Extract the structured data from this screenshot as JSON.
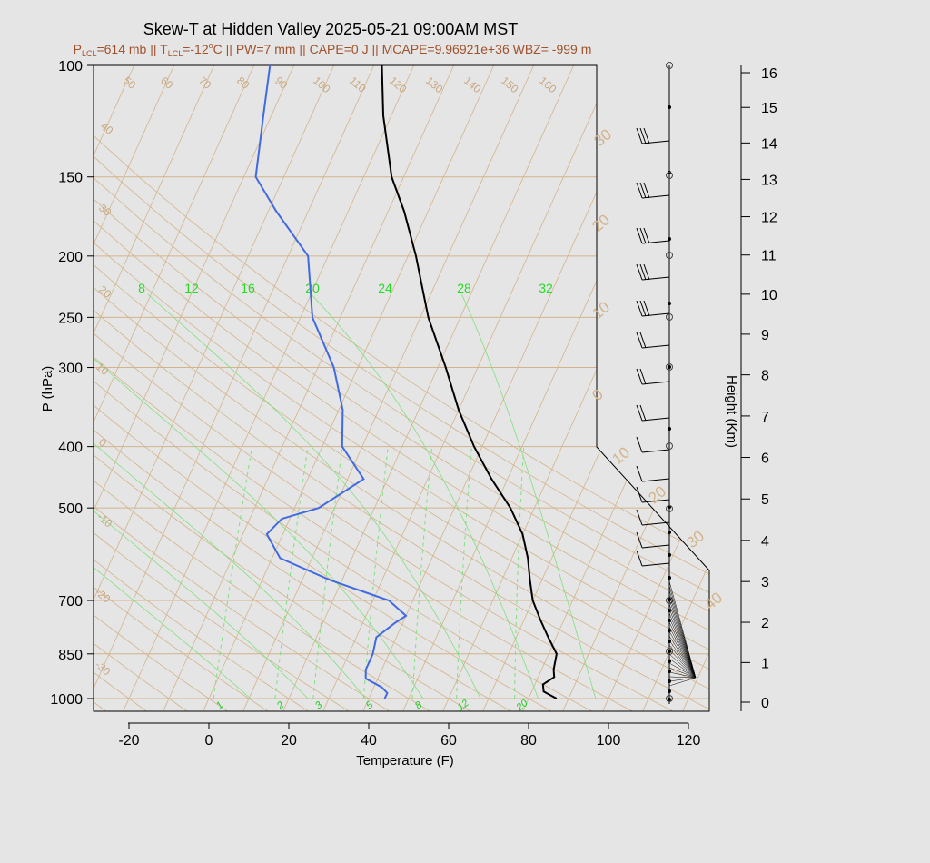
{
  "title": "Skew-T at Hidden Valley 2025-05-21 09:00AM MST",
  "subtitle": {
    "p_lcl": "P",
    "p_lcl_sub": "LCL",
    "p_lcl_val": "=614 mb || T",
    "t_lcl_sub": "LCL",
    "t_lcl_val": "=-12",
    "deg": "o",
    "rest": "C || PW=7 mm || CAPE=0 J || MCAPE=9.96921e+36 WBZ= -999 m"
  },
  "colors": {
    "temperature": "#000000",
    "dewpoint": "#4169e1",
    "isotherm": "#d2b48c",
    "mixing_ratio": "#7fe07f",
    "background": "#e5e5e5"
  },
  "chart_data": {
    "type": "line",
    "xlabel": "Temperature (F)",
    "ylabel": "P (hPa)",
    "y2label": "Height (Km)",
    "x_ticks": [
      "-20",
      "0",
      "20",
      "40",
      "60",
      "80",
      "100",
      "120"
    ],
    "y_ticks": [
      "100",
      "150",
      "200",
      "250",
      "300",
      "400",
      "500",
      "700",
      "850",
      "1000"
    ],
    "height_ticks": [
      "0",
      "1",
      "2",
      "3",
      "4",
      "5",
      "6",
      "7",
      "8",
      "9",
      "10",
      "11",
      "12",
      "13",
      "14",
      "15",
      "16"
    ],
    "mixing_ratio_labels_top": [
      "8",
      "12",
      "16",
      "20",
      "24",
      "28",
      "32"
    ],
    "mixing_ratio_labels_bottom": [
      "1",
      "2",
      "3",
      "5",
      "8",
      "12",
      "20"
    ],
    "isotherm_labels_top": [
      "50",
      "60",
      "70",
      "80",
      "90",
      "100",
      "110",
      "120",
      "130",
      "140",
      "150",
      "160"
    ],
    "isotherm_labels_left": [
      "40",
      "30",
      "20",
      "10",
      "0",
      "-10",
      "-20",
      "-30"
    ],
    "isotherm_labels_right": [
      "30",
      "20",
      "10",
      "0",
      "10",
      "20",
      "30",
      "40"
    ],
    "temperature_series": {
      "name": "Temperature",
      "points": [
        [
          1000,
          87
        ],
        [
          975,
          83
        ],
        [
          950,
          82
        ],
        [
          925,
          84
        ],
        [
          900,
          83
        ],
        [
          850,
          82
        ],
        [
          800,
          78
        ],
        [
          750,
          74
        ],
        [
          700,
          70
        ],
        [
          650,
          67
        ],
        [
          600,
          64
        ],
        [
          550,
          60
        ],
        [
          500,
          54
        ],
        [
          450,
          46
        ],
        [
          400,
          38
        ],
        [
          350,
          30
        ],
        [
          300,
          22
        ],
        [
          250,
          12
        ],
        [
          200,
          2
        ],
        [
          170,
          -6
        ],
        [
          150,
          -13
        ],
        [
          120,
          -22
        ],
        [
          100,
          -28
        ]
      ]
    },
    "dewpoint_series": {
      "name": "Dewpoint",
      "points": [
        [
          1000,
          44
        ],
        [
          980,
          44
        ],
        [
          960,
          42
        ],
        [
          930,
          37
        ],
        [
          900,
          36
        ],
        [
          850,
          36
        ],
        [
          800,
          35
        ],
        [
          760,
          38
        ],
        [
          740,
          40
        ],
        [
          700,
          34
        ],
        [
          650,
          17
        ],
        [
          600,
          2
        ],
        [
          550,
          -4
        ],
        [
          520,
          -2
        ],
        [
          500,
          6
        ],
        [
          450,
          14
        ],
        [
          400,
          5
        ],
        [
          350,
          1
        ],
        [
          300,
          -6
        ],
        [
          250,
          -17
        ],
        [
          200,
          -25
        ],
        [
          170,
          -38
        ],
        [
          150,
          -47
        ],
        [
          120,
          -52
        ],
        [
          100,
          -56
        ]
      ]
    }
  }
}
